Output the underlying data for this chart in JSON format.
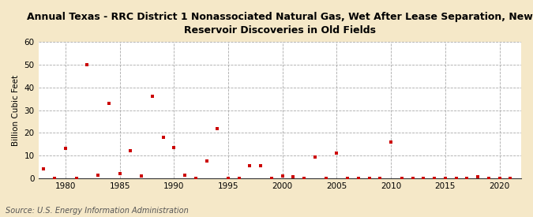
{
  "title": "Annual Texas - RRC District 1 Nonassociated Natural Gas, Wet After Lease Separation, New\nReservoir Discoveries in Old Fields",
  "ylabel": "Billion Cubic Feet",
  "source": "Source: U.S. Energy Information Administration",
  "background_color": "#f5e8c8",
  "plot_background_color": "#ffffff",
  "marker_color": "#cc0000",
  "marker": "s",
  "marker_size": 3.5,
  "xlim": [
    1977.5,
    2022
  ],
  "ylim": [
    0,
    60
  ],
  "yticks": [
    0,
    10,
    20,
    30,
    40,
    50,
    60
  ],
  "xticks": [
    1980,
    1985,
    1990,
    1995,
    2000,
    2005,
    2010,
    2015,
    2020
  ],
  "data": {
    "1978": 4.0,
    "1979": 0.0,
    "1980": 13.0,
    "1981": 0.0,
    "1982": 50.0,
    "1983": 1.5,
    "1984": 33.0,
    "1985": 2.0,
    "1986": 12.0,
    "1987": 1.0,
    "1988": 36.0,
    "1989": 18.0,
    "1990": 13.5,
    "1991": 1.5,
    "1992": 0.0,
    "1993": 7.5,
    "1994": 22.0,
    "1995": 0.0,
    "1996": 0.0,
    "1997": 5.5,
    "1998": 5.5,
    "1999": 0.0,
    "2000": 1.0,
    "2001": 0.5,
    "2002": 0.0,
    "2003": 9.5,
    "2004": 0.0,
    "2005": 11.0,
    "2006": 0.0,
    "2007": 0.0,
    "2008": 0.0,
    "2009": 0.0,
    "2010": 16.0,
    "2011": 0.0,
    "2012": 0.0,
    "2013": 0.0,
    "2014": 0.0,
    "2015": 0.0,
    "2016": 0.0,
    "2017": 0.0,
    "2018": 0.5,
    "2019": 0.0,
    "2020": 0.0,
    "2021": 0.0
  }
}
